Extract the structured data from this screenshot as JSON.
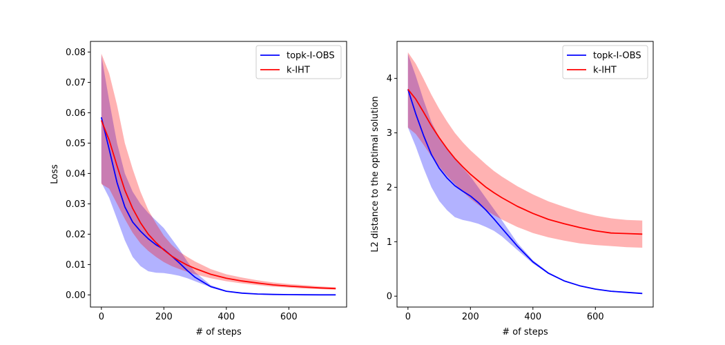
{
  "chart_data": [
    {
      "type": "line",
      "title": "",
      "xlabel": "# of steps",
      "ylabel": "Loss",
      "xlim": [
        -35,
        785
      ],
      "ylim": [
        -0.004,
        0.0835
      ],
      "xticks": [
        0,
        200,
        400,
        600
      ],
      "xtick_labels": [
        "0",
        "200",
        "400",
        "600"
      ],
      "yticks": [
        0.0,
        0.01,
        0.02,
        0.03,
        0.04,
        0.05,
        0.06,
        0.07,
        0.08
      ],
      "ytick_labels": [
        "0.00",
        "0.01",
        "0.02",
        "0.03",
        "0.04",
        "0.05",
        "0.06",
        "0.07",
        "0.08"
      ],
      "grid": false,
      "legend": "upper-right",
      "x": [
        0,
        25,
        50,
        75,
        100,
        125,
        150,
        175,
        200,
        225,
        250,
        275,
        300,
        350,
        400,
        450,
        500,
        550,
        600,
        650,
        700,
        750
      ],
      "series": [
        {
          "name": "topk-I-OBS",
          "color": "#0000ff",
          "fill_color": "#0000ff",
          "values": [
            0.0585,
            0.048,
            0.037,
            0.029,
            0.024,
            0.021,
            0.0185,
            0.0165,
            0.015,
            0.0128,
            0.0105,
            0.008,
            0.0058,
            0.0027,
            0.0012,
            0.0006,
            0.0003,
            0.00015,
            0.0001,
            5e-05,
            3e-05,
            2e-05
          ],
          "lower": [
            0.037,
            0.032,
            0.025,
            0.018,
            0.0125,
            0.0095,
            0.0078,
            0.0073,
            0.0072,
            0.0068,
            0.0063,
            0.0055,
            0.0045,
            0.0025,
            0.0011,
            0.0005,
            0.0002,
            0.0001,
            5e-05,
            3e-05,
            2e-05,
            1e-05
          ],
          "upper": [
            0.079,
            0.064,
            0.05,
            0.04,
            0.034,
            0.03,
            0.027,
            0.0245,
            0.022,
            0.0185,
            0.015,
            0.011,
            0.0075,
            0.0032,
            0.0014,
            0.0007,
            0.0004,
            0.0002,
            0.0001,
            6e-05,
            4e-05,
            2e-05
          ]
        },
        {
          "name": "k-IHT",
          "color": "#ff0000",
          "fill_color": "#ff0000",
          "values": [
            0.0575,
            0.051,
            0.0425,
            0.0345,
            0.0285,
            0.0238,
            0.02,
            0.0172,
            0.0148,
            0.0128,
            0.0112,
            0.0098,
            0.0087,
            0.0068,
            0.0055,
            0.0046,
            0.0039,
            0.0033,
            0.0029,
            0.0026,
            0.0023,
            0.0021
          ],
          "lower": [
            0.0365,
            0.035,
            0.03,
            0.025,
            0.0205,
            0.017,
            0.0145,
            0.0125,
            0.0108,
            0.0095,
            0.0085,
            0.0076,
            0.0068,
            0.0055,
            0.0045,
            0.0038,
            0.0032,
            0.0027,
            0.0024,
            0.0021,
            0.0019,
            0.0017
          ],
          "upper": [
            0.0795,
            0.073,
            0.0625,
            0.05,
            0.0415,
            0.034,
            0.028,
            0.0235,
            0.0195,
            0.0165,
            0.0142,
            0.0125,
            0.011,
            0.0085,
            0.0068,
            0.0057,
            0.0048,
            0.0041,
            0.0036,
            0.0032,
            0.0028,
            0.0025
          ]
        }
      ]
    },
    {
      "type": "line",
      "title": "",
      "xlabel": "# of steps",
      "ylabel": "L2 distance to the optimal solution",
      "xlim": [
        -35,
        785
      ],
      "ylim": [
        -0.2,
        4.68
      ],
      "xticks": [
        0,
        200,
        400,
        600
      ],
      "xtick_labels": [
        "0",
        "200",
        "400",
        "600"
      ],
      "yticks": [
        0,
        1,
        2,
        3,
        4
      ],
      "ytick_labels": [
        "0",
        "1",
        "2",
        "3",
        "4"
      ],
      "grid": false,
      "legend": "upper-right",
      "x": [
        0,
        25,
        50,
        75,
        100,
        125,
        150,
        175,
        200,
        225,
        250,
        275,
        300,
        350,
        400,
        450,
        500,
        550,
        600,
        650,
        700,
        750
      ],
      "series": [
        {
          "name": "topk-I-OBS",
          "color": "#0000ff",
          "fill_color": "#0000ff",
          "values": [
            3.8,
            3.35,
            2.95,
            2.6,
            2.35,
            2.17,
            2.03,
            1.93,
            1.84,
            1.72,
            1.58,
            1.42,
            1.25,
            0.92,
            0.63,
            0.42,
            0.28,
            0.19,
            0.13,
            0.09,
            0.07,
            0.05
          ],
          "lower": [
            3.1,
            2.75,
            2.35,
            2.0,
            1.75,
            1.58,
            1.45,
            1.4,
            1.37,
            1.33,
            1.27,
            1.2,
            1.1,
            0.85,
            0.6,
            0.41,
            0.27,
            0.18,
            0.12,
            0.08,
            0.06,
            0.04
          ],
          "upper": [
            4.45,
            4.05,
            3.6,
            3.2,
            2.92,
            2.7,
            2.52,
            2.36,
            2.2,
            2.0,
            1.8,
            1.6,
            1.4,
            0.98,
            0.66,
            0.44,
            0.29,
            0.2,
            0.14,
            0.1,
            0.07,
            0.05
          ]
        },
        {
          "name": "k-IHT",
          "color": "#ff0000",
          "fill_color": "#ff0000",
          "values": [
            3.8,
            3.62,
            3.38,
            3.13,
            2.91,
            2.71,
            2.53,
            2.38,
            2.24,
            2.12,
            2.0,
            1.9,
            1.81,
            1.65,
            1.52,
            1.41,
            1.33,
            1.26,
            1.2,
            1.16,
            1.15,
            1.14
          ],
          "lower": [
            3.1,
            2.98,
            2.78,
            2.57,
            2.38,
            2.21,
            2.06,
            1.92,
            1.79,
            1.68,
            1.58,
            1.49,
            1.41,
            1.27,
            1.16,
            1.08,
            1.02,
            0.97,
            0.94,
            0.92,
            0.9,
            0.89
          ],
          "upper": [
            4.48,
            4.27,
            3.99,
            3.7,
            3.44,
            3.21,
            3.0,
            2.83,
            2.68,
            2.55,
            2.42,
            2.3,
            2.2,
            2.02,
            1.87,
            1.74,
            1.64,
            1.55,
            1.48,
            1.43,
            1.4,
            1.39
          ]
        }
      ]
    }
  ]
}
